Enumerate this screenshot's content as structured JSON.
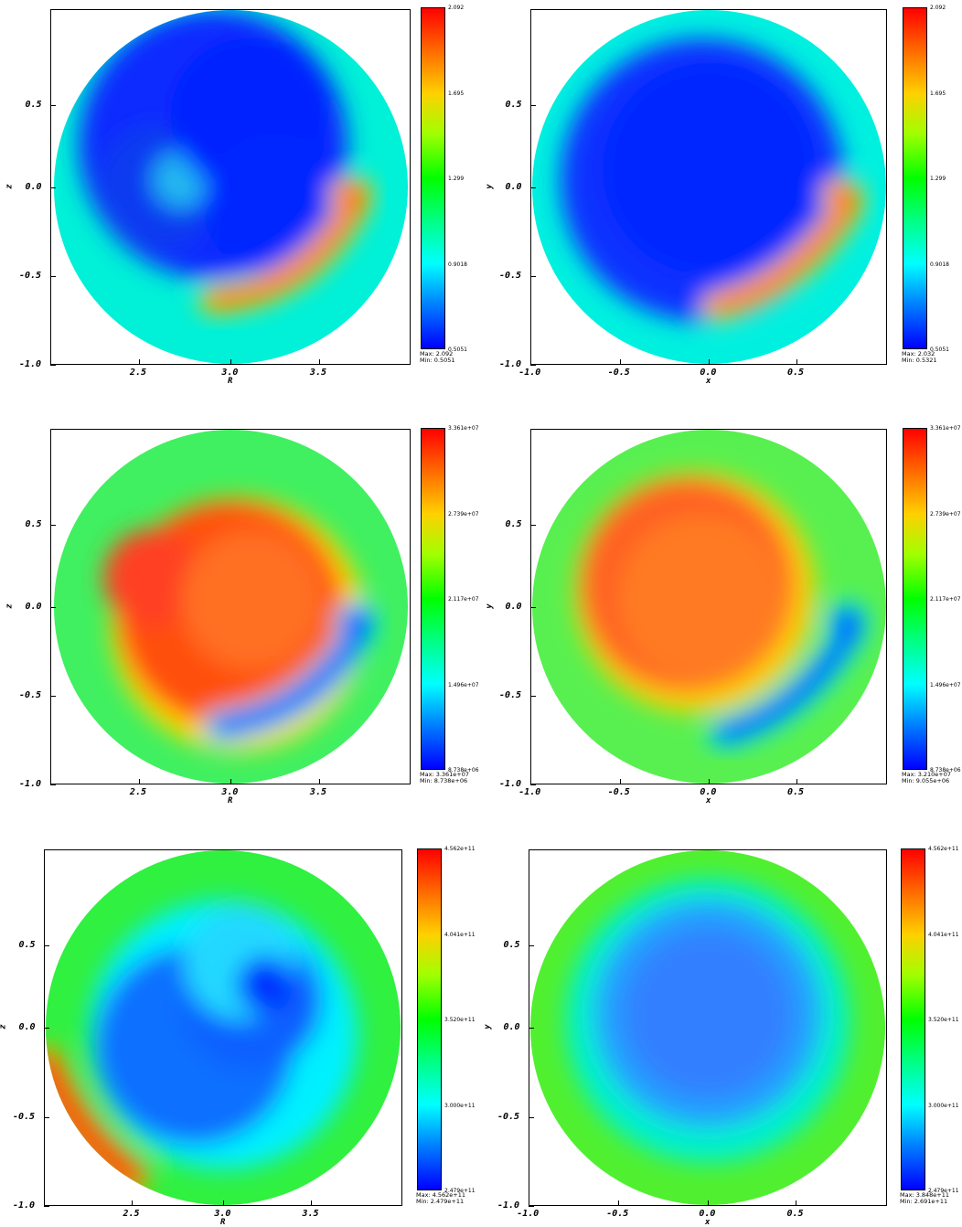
{
  "chart_data": [
    {
      "type": "heatmap",
      "panel": "top-left",
      "xlabel": "R",
      "ylabel": "z",
      "xticks": [
        "2.5",
        "3.0",
        "3.5"
      ],
      "yticks": [
        "0.5",
        "0.0",
        "-0.5",
        "-1.0"
      ],
      "colorbar": [
        "2.092",
        "1.695",
        "1.299",
        "0.9018",
        "0.5051"
      ],
      "colormap": [
        "#0000ff",
        "#00ffff",
        "#00ff00",
        "#ffff00",
        "#ff0000"
      ],
      "max_label": "Max:  2.092",
      "min_label": "Min:  0.5051"
    },
    {
      "type": "heatmap",
      "panel": "top-right",
      "xlabel": "x",
      "ylabel": "y",
      "xticks": [
        "-1.0",
        "-0.5",
        "0.0",
        "0.5"
      ],
      "yticks": [
        "0.5",
        "0.0",
        "-0.5",
        "-1.0"
      ],
      "colorbar": [
        "2.092",
        "1.695",
        "1.299",
        "0.9018",
        "0.5051"
      ],
      "colormap": [
        "#0000ff",
        "#00ffff",
        "#00ff00",
        "#ffff00",
        "#ff0000"
      ],
      "max_label": "Max:  2.032",
      "min_label": "Min:  0.5321"
    },
    {
      "type": "heatmap",
      "panel": "middle-left",
      "xlabel": "R",
      "ylabel": "z",
      "xticks": [
        "2.5",
        "3.0",
        "3.5"
      ],
      "yticks": [
        "0.5",
        "0.0",
        "-0.5",
        "-1.0"
      ],
      "colorbar": [
        "3.361e+07",
        "2.739e+07",
        "2.117e+07",
        "1.496e+07",
        "8.738e+06"
      ],
      "colormap": [
        "#0000ff",
        "#00ffff",
        "#00ff00",
        "#ffff00",
        "#ff0000"
      ],
      "max_label": "Max:  3.361e+07",
      "min_label": "Min:  8.738e+06"
    },
    {
      "type": "heatmap",
      "panel": "middle-right",
      "xlabel": "x",
      "ylabel": "y",
      "xticks": [
        "-1.0",
        "-0.5",
        "0.0",
        "0.5"
      ],
      "yticks": [
        "0.5",
        "0.0",
        "-0.5",
        "-1.0"
      ],
      "colorbar": [
        "3.361e+07",
        "2.739e+07",
        "2.117e+07",
        "1.496e+07",
        "8.738e+06"
      ],
      "colormap": [
        "#0000ff",
        "#00ffff",
        "#00ff00",
        "#ffff00",
        "#ff0000"
      ],
      "max_label": "Max:  3.210e+07",
      "min_label": "Min:  9.055e+06"
    },
    {
      "type": "heatmap",
      "panel": "bottom-left",
      "xlabel": "R",
      "ylabel": "z",
      "xticks": [
        "2.5",
        "3.0",
        "3.5"
      ],
      "yticks": [
        "0.5",
        "0.0",
        "-0.5",
        "-1.0"
      ],
      "colorbar": [
        "4.562e+11",
        "4.041e+11",
        "3.520e+11",
        "3.000e+11",
        "2.479e+11"
      ],
      "colormap": [
        "#0000ff",
        "#00ffff",
        "#00ff00",
        "#ffff00",
        "#ff0000"
      ],
      "max_label": "Max:  4.562e+11",
      "min_label": "Min:  2.479e+11"
    },
    {
      "type": "heatmap",
      "panel": "bottom-right",
      "xlabel": "x",
      "ylabel": "y",
      "xticks": [
        "-1.0",
        "-0.5",
        "0.0",
        "0.5"
      ],
      "yticks": [
        "0.5",
        "0.0",
        "-0.5",
        "-1.0"
      ],
      "colorbar": [
        "4.562e+11",
        "4.041e+11",
        "3.520e+11",
        "3.000e+11",
        "2.479e+11"
      ],
      "colormap": [
        "#0000ff",
        "#00ffff",
        "#00ff00",
        "#ffff00",
        "#ff0000"
      ],
      "max_label": "Max:  3.848e+11",
      "min_label": "Min:  2.691e+11"
    }
  ]
}
